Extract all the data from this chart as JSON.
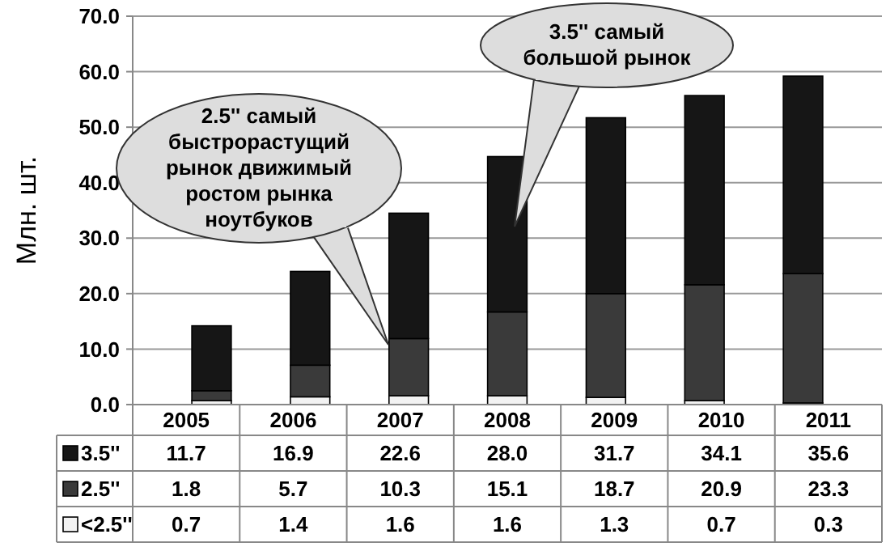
{
  "chart_data": {
    "type": "bar",
    "stacked": true,
    "ylabel": "Млн. шт.",
    "categories": [
      "2005",
      "2006",
      "2007",
      "2008",
      "2009",
      "2010",
      "2011"
    ],
    "series": [
      {
        "name": "<2.5''",
        "color": "#f2f2f2",
        "values": [
          0.7,
          1.4,
          1.6,
          1.6,
          1.3,
          0.7,
          0.3
        ],
        "value_labels": [
          "0.7",
          "1.4",
          "1.6",
          "1.6",
          "1.3",
          "0.7",
          "0.3"
        ]
      },
      {
        "name": "2.5''",
        "color": "#3a3a3a",
        "values": [
          1.8,
          5.7,
          10.3,
          15.1,
          18.7,
          20.9,
          23.3
        ],
        "value_labels": [
          "1.8",
          "5.7",
          "10.3",
          "15.1",
          "18.7",
          "20.9",
          "23.3"
        ]
      },
      {
        "name": "3.5''",
        "color": "#161616",
        "values": [
          11.7,
          16.9,
          22.6,
          28.0,
          31.7,
          34.1,
          35.6
        ],
        "value_labels": [
          "11.7",
          "16.9",
          "22.6",
          "28.0",
          "31.7",
          "34.1",
          "35.6"
        ]
      }
    ],
    "ylim": [
      0,
      70
    ],
    "yticks": [
      {
        "value": 0,
        "label": "0.0"
      },
      {
        "value": 10,
        "label": "10.0"
      },
      {
        "value": 20,
        "label": "20.0"
      },
      {
        "value": 30,
        "label": "30.0"
      },
      {
        "value": 40,
        "label": "40.0"
      },
      {
        "value": 50,
        "label": "50.0"
      },
      {
        "value": 60,
        "label": "60.0"
      },
      {
        "value": 70,
        "label": "70.0"
      }
    ],
    "grid": "y",
    "legend": "bottom",
    "annotations": [
      "2.5'' самый\nбыстрорастущий\nрынок  движимый\nростом рынка\nноутбуков",
      "3.5'' самый\nбольшой рынок"
    ]
  }
}
